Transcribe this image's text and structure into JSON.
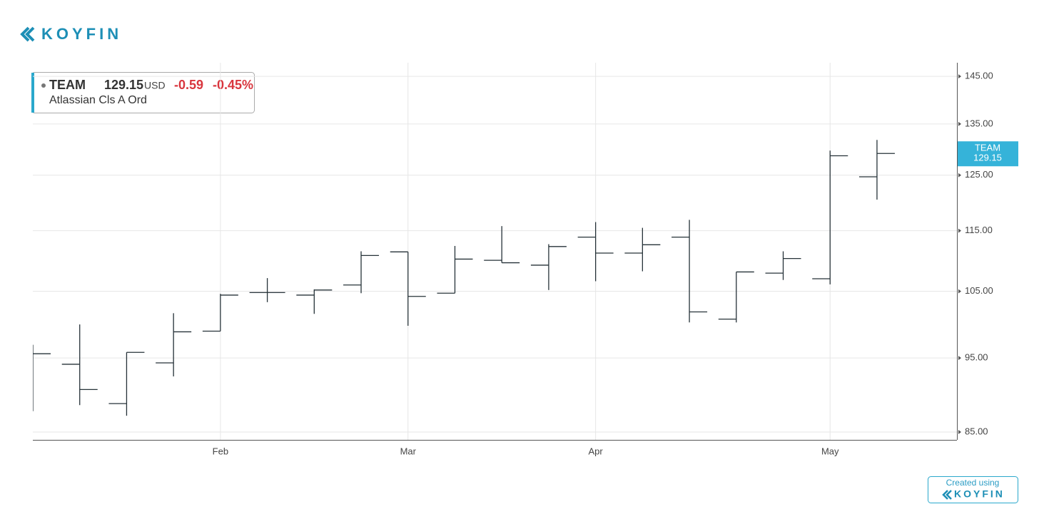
{
  "brand": {
    "logo": "KOYFIN",
    "footer": "Created using"
  },
  "chart_data": {
    "type": "ohlc",
    "ticker": "TEAM",
    "name": "Atlassian Cls A Ord",
    "currency": "USD",
    "change": -0.59,
    "change_pct": "-0.45%",
    "color": "#263238",
    "grid": true,
    "log": true,
    "categories": [
      null,
      null,
      null,
      null,
      "Feb",
      null,
      null,
      null,
      "Mar",
      null,
      null,
      null,
      "Apr",
      null,
      null,
      null,
      null,
      "May",
      null
    ],
    "open": [
      96.0,
      94.1,
      88.7,
      94.3,
      98.9,
      104.8,
      104.4,
      106.0,
      111.4,
      104.7,
      110.0,
      109.2,
      113.9,
      111.2,
      113.9,
      100.7,
      107.9,
      107.0,
      124.7
    ],
    "high": [
      96.9,
      99.9,
      95.8,
      101.6,
      104.6,
      107.1,
      105.3,
      111.5,
      111.4,
      112.4,
      115.8,
      112.7,
      116.5,
      115.5,
      116.9,
      108.1,
      111.5,
      129.7,
      131.8
    ],
    "low": [
      87.7,
      88.5,
      87.1,
      92.4,
      98.9,
      103.3,
      101.5,
      104.7,
      99.7,
      104.7,
      109.6,
      105.2,
      106.6,
      108.2,
      100.2,
      100.2,
      106.8,
      106.1,
      120.5
    ],
    "close": [
      95.6,
      90.6,
      95.8,
      98.8,
      104.4,
      104.8,
      105.2,
      110.8,
      104.2,
      110.2,
      109.6,
      112.3,
      111.2,
      112.6,
      101.8,
      108.1,
      110.3,
      128.7,
      129.15
    ],
    "ylim": [
      84,
      148
    ],
    "yticks": [
      {
        "value": 85,
        "label": "85.00"
      },
      {
        "value": 95,
        "label": "95.00"
      },
      {
        "value": 105,
        "label": "105.00"
      },
      {
        "value": 115,
        "label": "115.00"
      },
      {
        "value": 125,
        "label": "125.00"
      },
      {
        "value": 135,
        "label": "135.00"
      },
      {
        "value": 145,
        "label": "145.00"
      }
    ]
  }
}
